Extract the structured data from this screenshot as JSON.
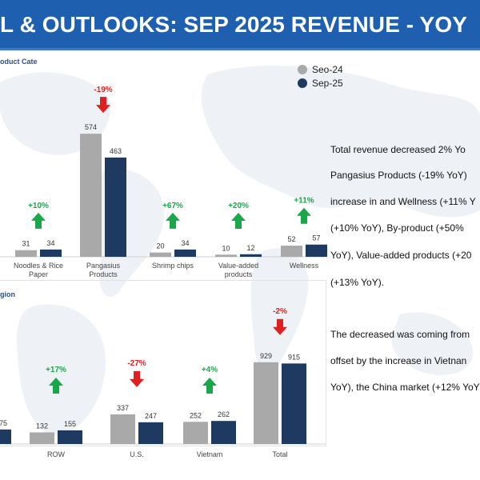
{
  "header": {
    "title": "L & OUTLOOKS: SEP 2025 REVENUE - YOY"
  },
  "legend": {
    "items": [
      {
        "label": "Seo-24",
        "color": "#a9a9a9"
      },
      {
        "label": "Sep-25",
        "color": "#1f3a60"
      }
    ]
  },
  "panels": {
    "top_label": "oduct Cate",
    "bottom_label": "gion"
  },
  "commentary": {
    "lines": [
      "Total revenue decreased 2% Yo",
      "Pangasius Products (-19% YoY)",
      "increase in and Wellness (+11% Y",
      "(+10% YoY),  By-product  (+50%",
      "YoY),   Value-added products (+20",
      "(+13% YoY).",
      "The decreased was coming from",
      "offset by the increase in Vietnan",
      "YoY), the China market (+12% YoY"
    ]
  },
  "colors": {
    "seo24": "#a9a9a9",
    "sep25": "#1f3a60",
    "up": "#1aa64a",
    "down": "#e02020",
    "up_text": "#1aa64a",
    "down_text": "#e02020"
  },
  "chart_data": [
    {
      "type": "bar",
      "title": "",
      "categories": [
        "",
        "Noodles & Rice Paper",
        "Pangasius Products",
        "Shrimp chips",
        "Value-added products",
        "Wellness"
      ],
      "series": [
        {
          "name": "Seo-24",
          "values": [
            null,
            31,
            574,
            20,
            10,
            52
          ]
        },
        {
          "name": "Sep-25",
          "values": [
            null,
            34,
            463,
            34,
            12,
            57
          ]
        }
      ],
      "changes": [
        "",
        "+10%",
        "-19%",
        "+67%",
        "+20%",
        "+11%"
      ]
    },
    {
      "type": "bar",
      "title": "",
      "categories": [
        "",
        "ROW",
        "U.S.",
        "Vietnam",
        "Total"
      ],
      "series": [
        {
          "name": "Seo-24",
          "values": [
            null,
            132,
            337,
            252,
            929
          ]
        },
        {
          "name": "Sep-25",
          "values": [
            null,
            155,
            247,
            262,
            915
          ]
        }
      ],
      "partial_label": "75",
      "changes": [
        "",
        "+17%",
        "-27%",
        "+4%",
        "-2%"
      ]
    }
  ]
}
